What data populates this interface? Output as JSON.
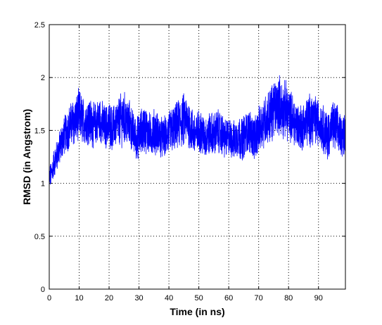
{
  "chart_data": {
    "type": "line",
    "title": "",
    "xlabel": "Time (in ns)",
    "ylabel": "RMSD (in Angstrom)",
    "xlim": [
      0,
      99
    ],
    "ylim": [
      0,
      2.5
    ],
    "xticks": [
      0,
      10,
      20,
      30,
      40,
      50,
      60,
      70,
      80,
      90
    ],
    "yticks": [
      0,
      0.5,
      1,
      1.5,
      2,
      2.5
    ],
    "xtick_labels": [
      "0",
      "10",
      "20",
      "30",
      "40",
      "50",
      "60",
      "70",
      "80",
      "90"
    ],
    "ytick_labels": [
      "0",
      "0.5",
      "1",
      "1.5",
      "2",
      "2.5"
    ],
    "grid": true,
    "grid_style": "dotted",
    "line_color": "#0000ff",
    "series": [
      {
        "x": [
          0,
          0.5,
          1,
          1.5,
          2,
          3,
          4,
          5,
          6,
          7,
          8,
          9,
          10,
          11,
          12,
          13,
          14,
          15,
          16,
          17,
          18,
          19,
          20,
          21,
          22,
          23,
          24,
          25,
          26,
          27,
          28,
          29,
          30,
          31,
          32,
          33,
          34,
          35,
          36,
          37,
          38,
          39,
          40,
          41,
          42,
          43,
          44,
          45,
          46,
          47,
          48,
          49,
          50,
          51,
          52,
          53,
          54,
          55,
          56,
          57,
          58,
          59,
          60,
          61,
          62,
          63,
          64,
          65,
          66,
          67,
          68,
          69,
          70,
          71,
          72,
          73,
          74,
          75,
          76,
          77,
          78,
          79,
          80,
          81,
          82,
          83,
          84,
          85,
          86,
          87,
          88,
          89,
          90,
          91,
          92,
          93,
          94,
          95,
          96,
          97,
          98,
          99
        ],
        "center": [
          1.05,
          1.08,
          1.12,
          1.18,
          1.22,
          1.3,
          1.38,
          1.45,
          1.5,
          1.55,
          1.58,
          1.6,
          1.65,
          1.6,
          1.58,
          1.6,
          1.57,
          1.55,
          1.58,
          1.6,
          1.55,
          1.53,
          1.56,
          1.52,
          1.55,
          1.58,
          1.6,
          1.62,
          1.58,
          1.55,
          1.48,
          1.42,
          1.45,
          1.5,
          1.52,
          1.48,
          1.45,
          1.5,
          1.47,
          1.45,
          1.42,
          1.45,
          1.48,
          1.5,
          1.52,
          1.55,
          1.58,
          1.6,
          1.6,
          1.55,
          1.48,
          1.45,
          1.5,
          1.48,
          1.42,
          1.45,
          1.48,
          1.45,
          1.5,
          1.48,
          1.45,
          1.42,
          1.45,
          1.42,
          1.4,
          1.45,
          1.42,
          1.44,
          1.48,
          1.5,
          1.45,
          1.42,
          1.5,
          1.55,
          1.6,
          1.62,
          1.65,
          1.7,
          1.72,
          1.75,
          1.68,
          1.7,
          1.65,
          1.62,
          1.58,
          1.55,
          1.52,
          1.55,
          1.58,
          1.6,
          1.62,
          1.6,
          1.58,
          1.55,
          1.5,
          1.45,
          1.5,
          1.55,
          1.52,
          1.48,
          1.45,
          1.5
        ],
        "amplitude": [
          0.1,
          0.1,
          0.1,
          0.12,
          0.12,
          0.14,
          0.15,
          0.16,
          0.18,
          0.18,
          0.2,
          0.2,
          0.22,
          0.2,
          0.18,
          0.2,
          0.2,
          0.18,
          0.18,
          0.2,
          0.18,
          0.18,
          0.2,
          0.18,
          0.18,
          0.2,
          0.22,
          0.22,
          0.2,
          0.2,
          0.18,
          0.18,
          0.18,
          0.2,
          0.2,
          0.18,
          0.18,
          0.18,
          0.18,
          0.18,
          0.16,
          0.18,
          0.18,
          0.2,
          0.2,
          0.2,
          0.22,
          0.22,
          0.2,
          0.2,
          0.2,
          0.18,
          0.18,
          0.18,
          0.18,
          0.18,
          0.18,
          0.18,
          0.18,
          0.18,
          0.18,
          0.16,
          0.16,
          0.16,
          0.16,
          0.18,
          0.18,
          0.18,
          0.18,
          0.18,
          0.18,
          0.18,
          0.2,
          0.2,
          0.22,
          0.22,
          0.24,
          0.24,
          0.24,
          0.24,
          0.24,
          0.24,
          0.22,
          0.22,
          0.2,
          0.2,
          0.2,
          0.2,
          0.2,
          0.22,
          0.22,
          0.2,
          0.2,
          0.2,
          0.2,
          0.2,
          0.2,
          0.2,
          0.2,
          0.18,
          0.18,
          0.18
        ]
      }
    ]
  }
}
